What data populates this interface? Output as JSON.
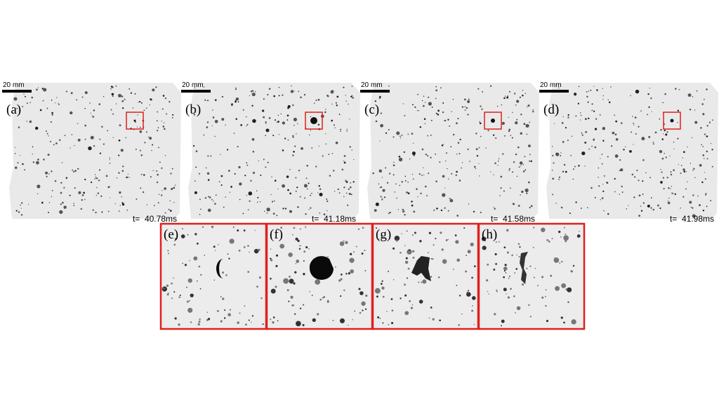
{
  "panels": [
    {
      "label": "(a)",
      "scale": "20 mm",
      "time": "t=  40.78ms"
    },
    {
      "label": "(b)",
      "scale": "20 mm",
      "time": "t=  41.18ms"
    },
    {
      "label": "(c)",
      "scale": "20 mm",
      "time": "t=  41.58ms"
    },
    {
      "label": "(d)",
      "scale": "20 mm",
      "time": "t=  41.98ms"
    }
  ],
  "zooms": [
    {
      "label": "(e)"
    },
    {
      "label": "(f)"
    },
    {
      "label": "(g)"
    },
    {
      "label": "(h)"
    }
  ]
}
